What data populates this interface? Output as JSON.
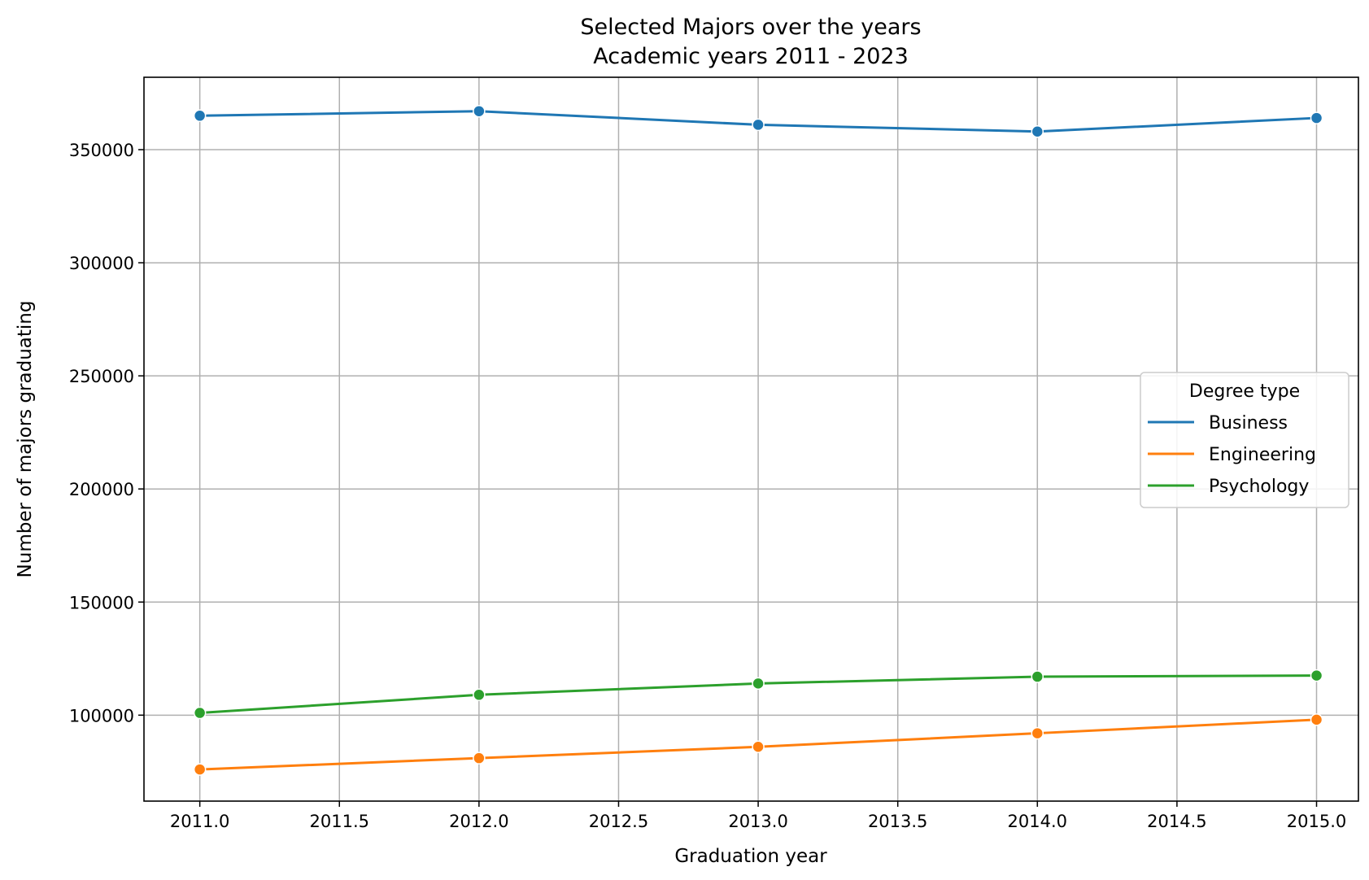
{
  "chart_data": {
    "type": "line",
    "title": "Selected Majors over the years",
    "subtitle": "Academic years 2011 - 2023",
    "xlabel": "Graduation year",
    "ylabel": "Number of majors graduating",
    "xlim": [
      2010.8,
      2015.15
    ],
    "ylim": [
      62000,
      382000
    ],
    "x_ticks": [
      2011.0,
      2011.5,
      2012.0,
      2012.5,
      2013.0,
      2013.5,
      2014.0,
      2014.5,
      2015.0
    ],
    "x_tick_labels": [
      "2011.0",
      "2011.5",
      "2012.0",
      "2012.5",
      "2013.0",
      "2013.5",
      "2014.0",
      "2014.5",
      "2015.0"
    ],
    "y_ticks": [
      100000,
      150000,
      200000,
      250000,
      300000,
      350000
    ],
    "y_tick_labels": [
      "100000",
      "150000",
      "200000",
      "250000",
      "300000",
      "350000"
    ],
    "grid": true,
    "legend": {
      "title": "Degree type",
      "placement": "center-right"
    },
    "x": [
      2011,
      2012,
      2013,
      2014,
      2015
    ],
    "series": [
      {
        "name": "Business",
        "color": "#1f77b4",
        "values": [
          365000,
          367000,
          361000,
          358000,
          364000
        ]
      },
      {
        "name": "Engineering",
        "color": "#ff7f0e",
        "values": [
          76000,
          81000,
          86000,
          92000,
          98000
        ]
      },
      {
        "name": "Psychology",
        "color": "#2ca02c",
        "values": [
          101000,
          109000,
          114000,
          117000,
          117500
        ]
      }
    ]
  }
}
